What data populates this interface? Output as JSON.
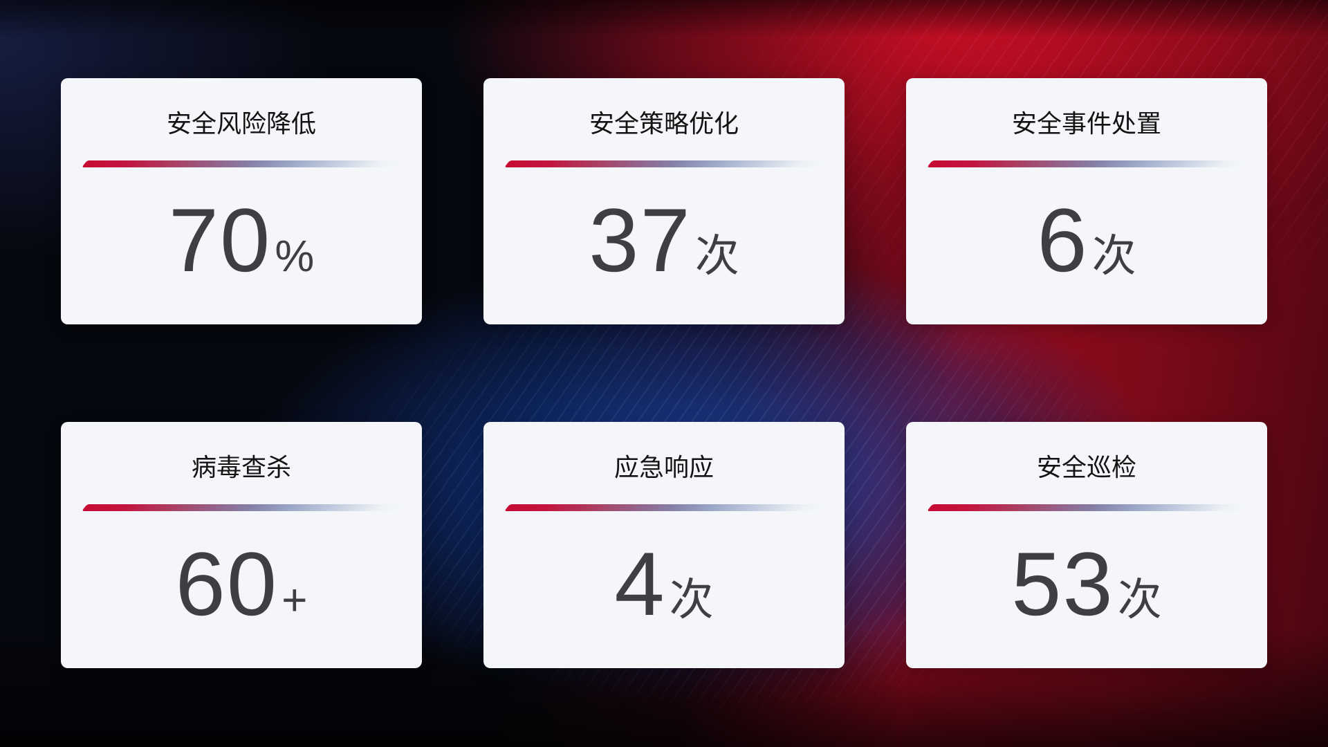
{
  "page": {
    "kind": "security-operations-stat-dashboard",
    "background": {
      "base_color": "#06080f",
      "red_glow": "#9b0c1e",
      "maroon_edge": "#4a0610",
      "blue_glow": "#12418f",
      "navy_corner": "#222e66"
    },
    "card_style": {
      "background": "#f4f6f9",
      "title_color": "#131313",
      "value_color": "#3e3f43",
      "divider_gradient": [
        "#c60b34",
        "#8581a8",
        "#b9c4da",
        "transparent"
      ]
    }
  },
  "cards": [
    {
      "title": "安全风险降低",
      "value": "70",
      "suffix": "%"
    },
    {
      "title": "安全策略优化",
      "value": "37",
      "suffix": "次"
    },
    {
      "title": "安全事件处置",
      "value": "6",
      "suffix": "次"
    },
    {
      "title": "病毒查杀",
      "value": "60",
      "suffix": "+"
    },
    {
      "title": "应急响应",
      "value": "4",
      "suffix": "次"
    },
    {
      "title": "安全巡检",
      "value": "53",
      "suffix": "次"
    }
  ]
}
